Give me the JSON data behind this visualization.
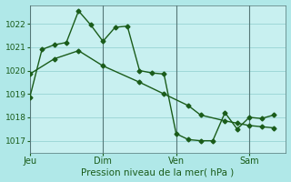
{
  "xlabel": "Pression niveau de la mer( hPa )",
  "bg_color": "#b0e8e8",
  "plot_bg_color": "#c8f0f0",
  "line_color": "#1a5c1a",
  "grid_color": "#8ecece",
  "label_color": "#1a5c1a",
  "ylim": [
    1016.5,
    1022.8
  ],
  "yticks": [
    1017,
    1018,
    1019,
    1020,
    1021,
    1022
  ],
  "xtick_labels": [
    "Jeu",
    "Dim",
    "Ven",
    "Sam"
  ],
  "xtick_positions": [
    0,
    3,
    6,
    9
  ],
  "vline_positions": [
    0,
    3,
    6,
    9
  ],
  "xlim": [
    0,
    10.5
  ],
  "series1_x": [
    0,
    0.5,
    1.0,
    1.5,
    2.0,
    2.5,
    3.0,
    3.5,
    4.0,
    4.5,
    5.0,
    5.5,
    6.0,
    6.5,
    7.0,
    7.5,
    8.0,
    8.5,
    9.0,
    9.5,
    10.0
  ],
  "series1_y": [
    1018.85,
    1020.9,
    1021.1,
    1021.2,
    1022.55,
    1021.95,
    1021.25,
    1021.85,
    1021.9,
    1020.0,
    1019.9,
    1019.85,
    1017.3,
    1017.05,
    1017.0,
    1017.0,
    1018.2,
    1017.5,
    1018.0,
    1017.95,
    1018.1
  ],
  "series2_x": [
    0,
    1.0,
    2.0,
    3.0,
    4.5,
    5.5,
    6.5,
    7.0,
    8.0,
    8.5,
    9.0,
    9.5,
    10.0
  ],
  "series2_y": [
    1019.85,
    1020.5,
    1020.85,
    1020.2,
    1019.5,
    1019.0,
    1018.5,
    1018.1,
    1017.85,
    1017.75,
    1017.65,
    1017.6,
    1017.55
  ],
  "marker_size": 2.5,
  "line_width": 1.0
}
